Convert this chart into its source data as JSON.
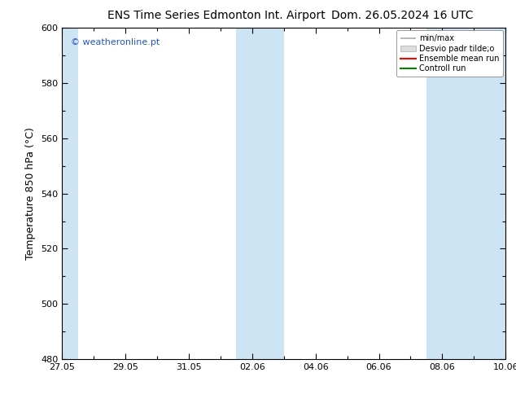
{
  "title_left": "ENS Time Series Edmonton Int. Airport",
  "title_right": "Dom. 26.05.2024 16 UTC",
  "ylabel": "Temperature 850 hPa (°C)",
  "watermark": "© weatheronline.pt",
  "ylim": [
    480,
    600
  ],
  "yticks": [
    480,
    500,
    520,
    540,
    560,
    580,
    600
  ],
  "x_start_day": 0,
  "x_end_day": 14,
  "xtick_labels": [
    "27.05",
    "29.05",
    "31.05",
    "02.06",
    "04.06",
    "06.06",
    "08.06",
    "10.06"
  ],
  "xtick_positions": [
    0,
    2,
    4,
    6,
    8,
    10,
    12,
    14
  ],
  "shaded_bands": [
    {
      "x_start": -0.1,
      "x_end": 0.5
    },
    {
      "x_start": 5.5,
      "x_end": 7.0
    },
    {
      "x_start": 11.5,
      "x_end": 14.1
    }
  ],
  "shaded_color": "#cde4f4",
  "legend_items": [
    {
      "label": "min/max",
      "color": "#aaaaaa",
      "lw": 1.2,
      "style": "-"
    },
    {
      "label": "Desvio padr tilde;o",
      "color": "#dddddd",
      "lw": 8,
      "style": "-"
    },
    {
      "label": "Ensemble mean run",
      "color": "red",
      "lw": 1.5,
      "style": "-"
    },
    {
      "label": "Controll run",
      "color": "green",
      "lw": 1.5,
      "style": "-"
    }
  ],
  "background_color": "#ffffff",
  "plot_bg_color": "#ffffff",
  "title_fontsize": 10,
  "tick_fontsize": 8,
  "label_fontsize": 9,
  "watermark_color": "#2255cc",
  "num_days": 14
}
